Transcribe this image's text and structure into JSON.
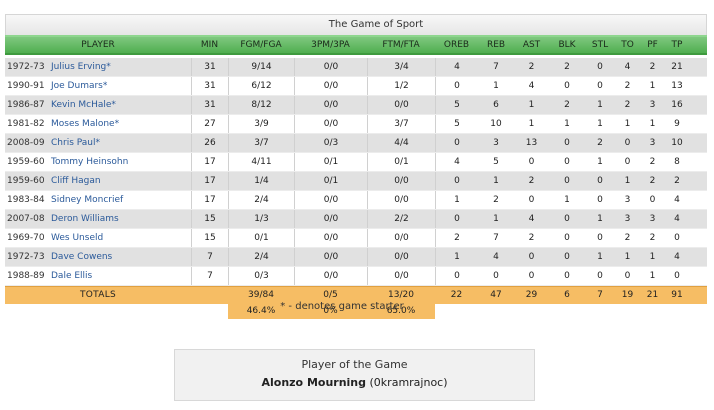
{
  "title": "The Game of Sport",
  "columns": [
    "PLAYER",
    "MIN",
    "FGM/FGA",
    "3PM/3PA",
    "FTM/FTA",
    "OREB",
    "REB",
    "AST",
    "BLK",
    "STL",
    "TO",
    "PF",
    "TP"
  ],
  "players": [
    {
      "season": "1972-73",
      "name": "Julius Erving*",
      "min": "31",
      "fg": "9/14",
      "tp3": "0/0",
      "ft": "3/4",
      "oreb": "4",
      "reb": "7",
      "ast": "2",
      "blk": "2",
      "stl": "0",
      "to": "4",
      "pf": "2",
      "tp": "21"
    },
    {
      "season": "1990-91",
      "name": "Joe Dumars*",
      "min": "31",
      "fg": "6/12",
      "tp3": "0/0",
      "ft": "1/2",
      "oreb": "0",
      "reb": "1",
      "ast": "4",
      "blk": "0",
      "stl": "0",
      "to": "2",
      "pf": "1",
      "tp": "13"
    },
    {
      "season": "1986-87",
      "name": "Kevin McHale*",
      "min": "31",
      "fg": "8/12",
      "tp3": "0/0",
      "ft": "0/0",
      "oreb": "5",
      "reb": "6",
      "ast": "1",
      "blk": "2",
      "stl": "1",
      "to": "2",
      "pf": "3",
      "tp": "16"
    },
    {
      "season": "1981-82",
      "name": "Moses Malone*",
      "min": "27",
      "fg": "3/9",
      "tp3": "0/0",
      "ft": "3/7",
      "oreb": "5",
      "reb": "10",
      "ast": "1",
      "blk": "1",
      "stl": "1",
      "to": "1",
      "pf": "1",
      "tp": "9"
    },
    {
      "season": "2008-09",
      "name": "Chris Paul*",
      "min": "26",
      "fg": "3/7",
      "tp3": "0/3",
      "ft": "4/4",
      "oreb": "0",
      "reb": "3",
      "ast": "13",
      "blk": "0",
      "stl": "2",
      "to": "0",
      "pf": "3",
      "tp": "10"
    },
    {
      "season": "1959-60",
      "name": "Tommy Heinsohn",
      "min": "17",
      "fg": "4/11",
      "tp3": "0/1",
      "ft": "0/1",
      "oreb": "4",
      "reb": "5",
      "ast": "0",
      "blk": "0",
      "stl": "1",
      "to": "0",
      "pf": "2",
      "tp": "8"
    },
    {
      "season": "1959-60",
      "name": "Cliff Hagan",
      "min": "17",
      "fg": "1/4",
      "tp3": "0/1",
      "ft": "0/0",
      "oreb": "0",
      "reb": "1",
      "ast": "2",
      "blk": "0",
      "stl": "0",
      "to": "1",
      "pf": "2",
      "tp": "2"
    },
    {
      "season": "1983-84",
      "name": "Sidney Moncrief",
      "min": "17",
      "fg": "2/4",
      "tp3": "0/0",
      "ft": "0/0",
      "oreb": "1",
      "reb": "2",
      "ast": "0",
      "blk": "1",
      "stl": "0",
      "to": "3",
      "pf": "0",
      "tp": "4"
    },
    {
      "season": "2007-08",
      "name": "Deron Williams",
      "min": "15",
      "fg": "1/3",
      "tp3": "0/0",
      "ft": "2/2",
      "oreb": "0",
      "reb": "1",
      "ast": "4",
      "blk": "0",
      "stl": "1",
      "to": "3",
      "pf": "3",
      "tp": "4"
    },
    {
      "season": "1969-70",
      "name": "Wes Unseld",
      "min": "15",
      "fg": "0/1",
      "tp3": "0/0",
      "ft": "0/0",
      "oreb": "2",
      "reb": "7",
      "ast": "2",
      "blk": "0",
      "stl": "0",
      "to": "2",
      "pf": "2",
      "tp": "0"
    },
    {
      "season": "1972-73",
      "name": "Dave Cowens",
      "min": "7",
      "fg": "2/4",
      "tp3": "0/0",
      "ft": "0/0",
      "oreb": "1",
      "reb": "4",
      "ast": "0",
      "blk": "0",
      "stl": "1",
      "to": "1",
      "pf": "1",
      "tp": "4"
    },
    {
      "season": "1988-89",
      "name": "Dale Ellis",
      "min": "7",
      "fg": "0/3",
      "tp3": "0/0",
      "ft": "0/0",
      "oreb": "0",
      "reb": "0",
      "ast": "0",
      "blk": "0",
      "stl": "0",
      "to": "0",
      "pf": "1",
      "tp": "0"
    }
  ],
  "totals": {
    "label": "TOTALS",
    "fg": "39/84",
    "tp3": "0/5",
    "ft": "13/20",
    "oreb": "22",
    "reb": "47",
    "ast": "29",
    "blk": "6",
    "stl": "7",
    "to": "19",
    "pf": "21",
    "tp": "91"
  },
  "percentages": {
    "fg": "46.4%",
    "tp3": "0%",
    "ft": "65.0%"
  },
  "starter_note": "* - denotes game starter",
  "player_of_game": {
    "label": "Player of the Game",
    "name": "Alonzo Mourning",
    "user": "(0kramrajnoc)"
  },
  "colors": {
    "header_green": "#5db55d",
    "totals_orange": "#f6bd64",
    "link_blue": "#2b5a9a"
  }
}
